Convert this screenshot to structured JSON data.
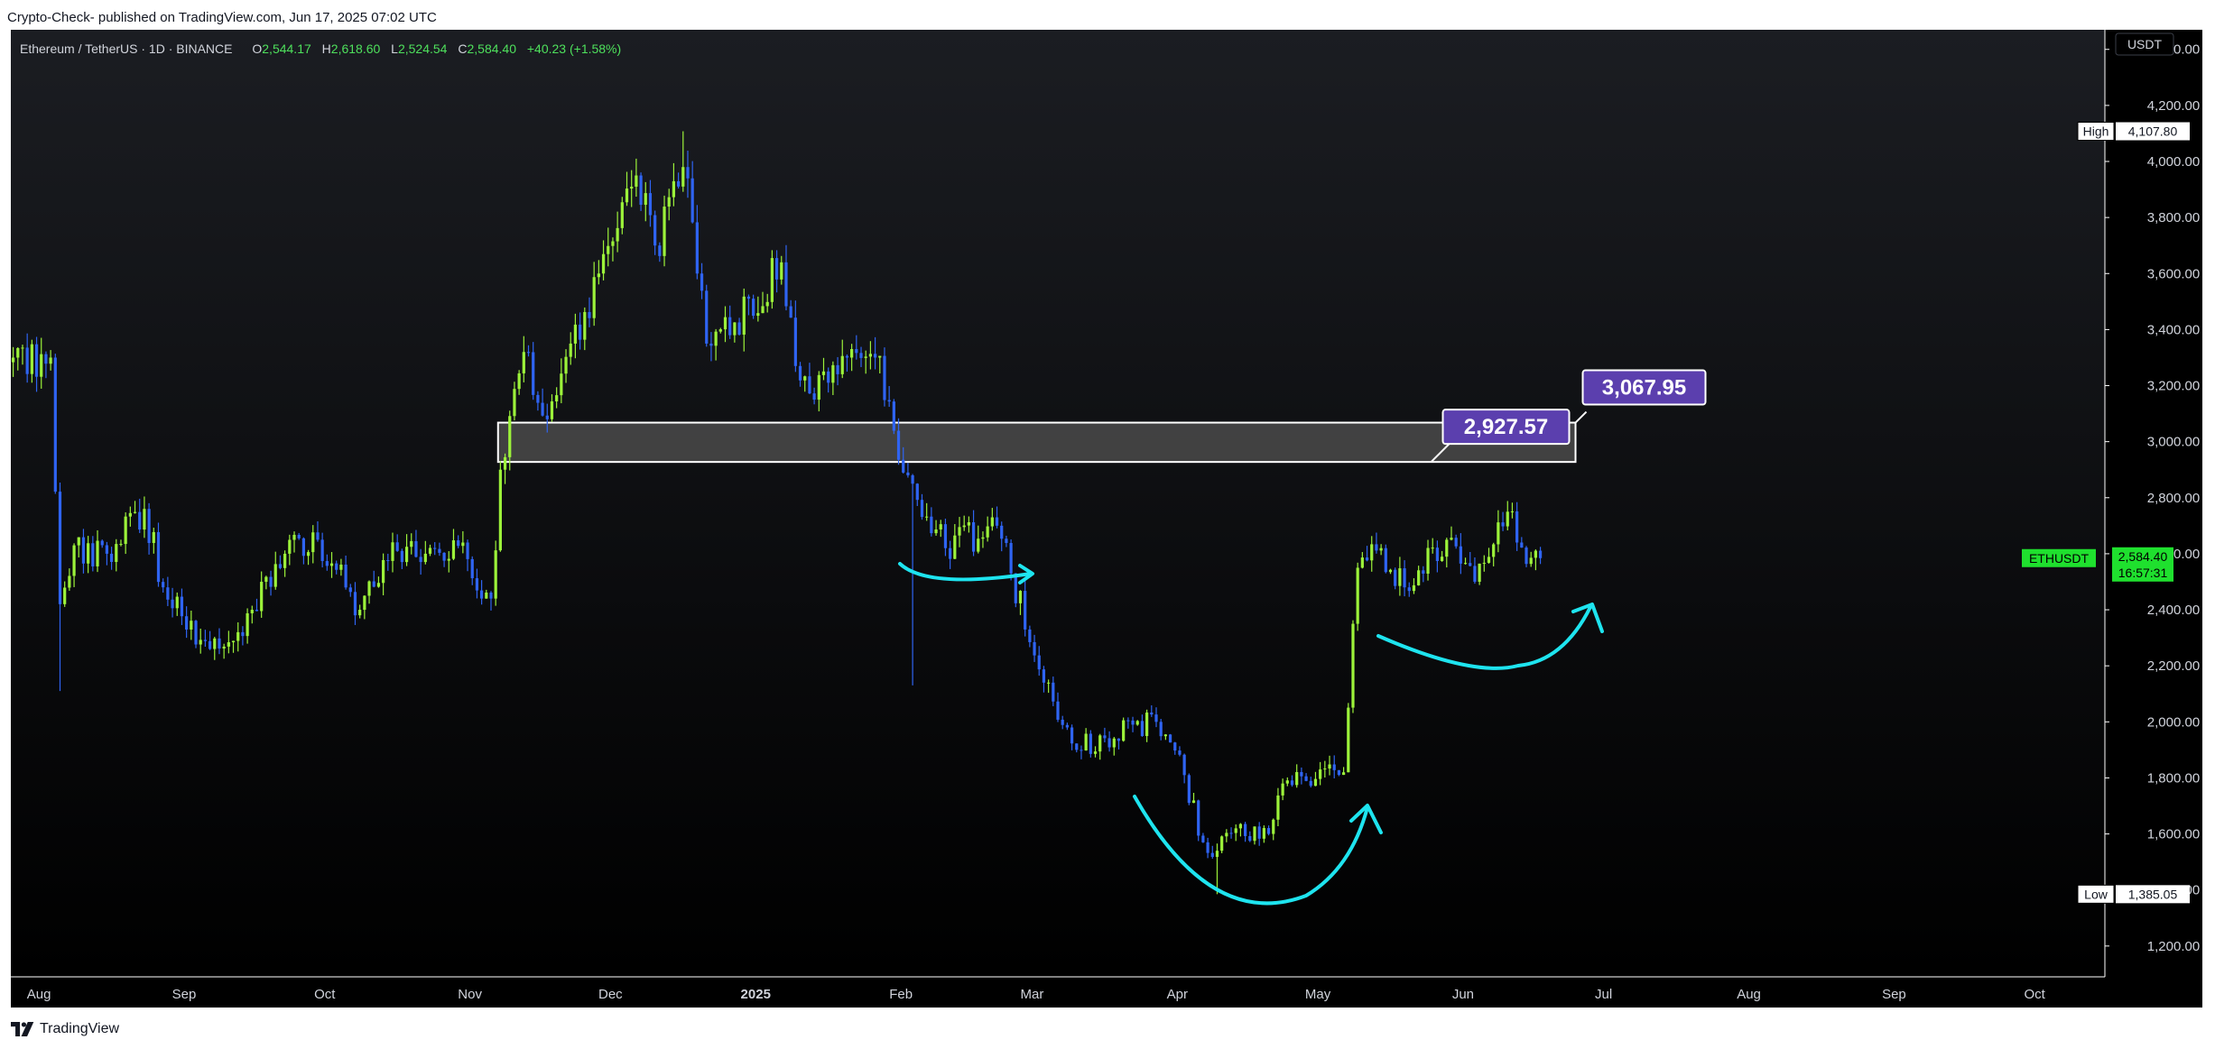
{
  "header": {
    "published_line": "Crypto-Check- published on TradingView.com, Jun 17, 2025 07:02 UTC"
  },
  "legend": {
    "symbol": "Ethereum / TetherUS · 1D · BINANCE",
    "open_label": "O",
    "open": "2,544.17",
    "high_label": "H",
    "high": "2,618.60",
    "low_label": "L",
    "low": "2,524.54",
    "close_label": "C",
    "close": "2,584.40",
    "change": "+40.23 (+1.58%)"
  },
  "footer": {
    "brand": "TradingView"
  },
  "colors": {
    "background": "#000000",
    "up": "#9cf23a",
    "down": "#2f64f2",
    "zone_fill": "#4a4a4a",
    "zone_stroke": "#ffffff",
    "label_purple": "#5b3fae",
    "annotation": "#1ee4ef",
    "price_tag": "#1fe02e"
  },
  "chart_data": {
    "type": "candlestick",
    "title": "",
    "currency_label": "USDT",
    "x_ticks": [
      "Aug",
      "Sep",
      "Oct",
      "Nov",
      "Dec",
      "2025",
      "Feb",
      "Mar",
      "Apr",
      "May",
      "Jun",
      "Jul",
      "Aug",
      "Sep",
      "Oct"
    ],
    "x_tick_dates": [
      "2024-08-01",
      "2024-09-01",
      "2024-10-01",
      "2024-11-01",
      "2024-12-01",
      "2025-01-01",
      "2025-02-01",
      "2025-03-01",
      "2025-04-01",
      "2025-05-01",
      "2025-06-01",
      "2025-07-01",
      "2025-08-01",
      "2025-09-01",
      "2025-10-01"
    ],
    "x_range": [
      "2024-07-26",
      "2025-10-16"
    ],
    "y_ticks": [
      "1,200.00",
      "1,400.00",
      "1,600.00",
      "1,800.00",
      "2,000.00",
      "2,200.00",
      "2,400.00",
      "2,600.00",
      "2,800.00",
      "3,000.00",
      "3,200.00",
      "3,400.00",
      "3,600.00",
      "3,800.00",
      "4,000.00",
      "4,200.00",
      "4,400.00"
    ],
    "y_tick_values": [
      1200,
      1400,
      1600,
      1800,
      2000,
      2200,
      2400,
      2600,
      2800,
      3000,
      3200,
      3400,
      3600,
      3800,
      4000,
      4200,
      4400
    ],
    "ylim": [
      1090,
      4470
    ],
    "high_marker": {
      "label": "High",
      "value": "4,107.80",
      "price": 4107.8
    },
    "low_marker": {
      "label": "Low",
      "value": "1,385.05",
      "price": 1385.05
    },
    "last_price_tag": {
      "symbol": "ETHUSDT",
      "price": "2,584.40",
      "countdown": "16:57:31",
      "value": 2584.4
    },
    "zone": {
      "from_date": "2024-11-07",
      "to_date": "2025-06-25",
      "low": 2927.57,
      "high": 3067.95
    },
    "zone_labels": [
      {
        "text": "2,927.57",
        "date": "2025-06-25",
        "price": 2927.57
      },
      {
        "text": "3,067.95",
        "date": "2025-06-25",
        "price": 3067.95
      }
    ],
    "anchors": [
      {
        "date": "2024-07-26",
        "price": 3300
      },
      {
        "date": "2024-08-03",
        "price": 3300
      },
      {
        "date": "2024-08-05",
        "price": 2420
      },
      {
        "date": "2024-08-08",
        "price": 2630
      },
      {
        "date": "2024-08-15",
        "price": 2600
      },
      {
        "date": "2024-08-23",
        "price": 2760
      },
      {
        "date": "2024-08-27",
        "price": 2480
      },
      {
        "date": "2024-09-06",
        "price": 2260
      },
      {
        "date": "2024-09-12",
        "price": 2320
      },
      {
        "date": "2024-09-22",
        "price": 2600
      },
      {
        "date": "2024-09-29",
        "price": 2650
      },
      {
        "date": "2024-10-08",
        "price": 2400
      },
      {
        "date": "2024-10-16",
        "price": 2610
      },
      {
        "date": "2024-10-22",
        "price": 2600
      },
      {
        "date": "2024-10-30",
        "price": 2640
      },
      {
        "date": "2024-11-03",
        "price": 2440
      },
      {
        "date": "2024-11-05",
        "price": 2440
      },
      {
        "date": "2024-11-07",
        "price": 2900
      },
      {
        "date": "2024-11-12",
        "price": 3320
      },
      {
        "date": "2024-11-17",
        "price": 3080
      },
      {
        "date": "2024-11-22",
        "price": 3350
      },
      {
        "date": "2024-11-28",
        "price": 3600
      },
      {
        "date": "2024-12-06",
        "price": 3950
      },
      {
        "date": "2024-12-10",
        "price": 3700
      },
      {
        "date": "2024-12-16",
        "price": 3980
      },
      {
        "date": "2024-12-19",
        "price": 3600
      },
      {
        "date": "2024-12-21",
        "price": 3350
      },
      {
        "date": "2024-12-26",
        "price": 3380
      },
      {
        "date": "2025-01-06",
        "price": 3640
      },
      {
        "date": "2025-01-09",
        "price": 3270
      },
      {
        "date": "2025-01-13",
        "price": 3150
      },
      {
        "date": "2025-01-20",
        "price": 3300
      },
      {
        "date": "2025-01-26",
        "price": 3300
      },
      {
        "date": "2025-02-02",
        "price": 2880
      },
      {
        "date": "2025-02-03",
        "price": 2850
      },
      {
        "date": "2025-02-10",
        "price": 2620
      },
      {
        "date": "2025-02-21",
        "price": 2700
      },
      {
        "date": "2025-02-24",
        "price": 2530
      },
      {
        "date": "2025-03-03",
        "price": 2140
      },
      {
        "date": "2025-03-10",
        "price": 1900
      },
      {
        "date": "2025-03-22",
        "price": 1990
      },
      {
        "date": "2025-03-27",
        "price": 2000
      },
      {
        "date": "2025-04-02",
        "price": 1810
      },
      {
        "date": "2025-04-06",
        "price": 1570
      },
      {
        "date": "2025-04-09",
        "price": 1540
      },
      {
        "date": "2025-04-13",
        "price": 1620
      },
      {
        "date": "2025-04-20",
        "price": 1600
      },
      {
        "date": "2025-04-23",
        "price": 1780
      },
      {
        "date": "2025-05-06",
        "price": 1820
      },
      {
        "date": "2025-05-08",
        "price": 2350
      },
      {
        "date": "2025-05-09",
        "price": 2550
      },
      {
        "date": "2025-05-14",
        "price": 2620
      },
      {
        "date": "2025-05-19",
        "price": 2480
      },
      {
        "date": "2025-05-28",
        "price": 2650
      },
      {
        "date": "2025-06-03",
        "price": 2500
      },
      {
        "date": "2025-06-10",
        "price": 2750
      },
      {
        "date": "2025-06-12",
        "price": 2640
      },
      {
        "date": "2025-06-17",
        "price": 2584.4
      }
    ]
  }
}
